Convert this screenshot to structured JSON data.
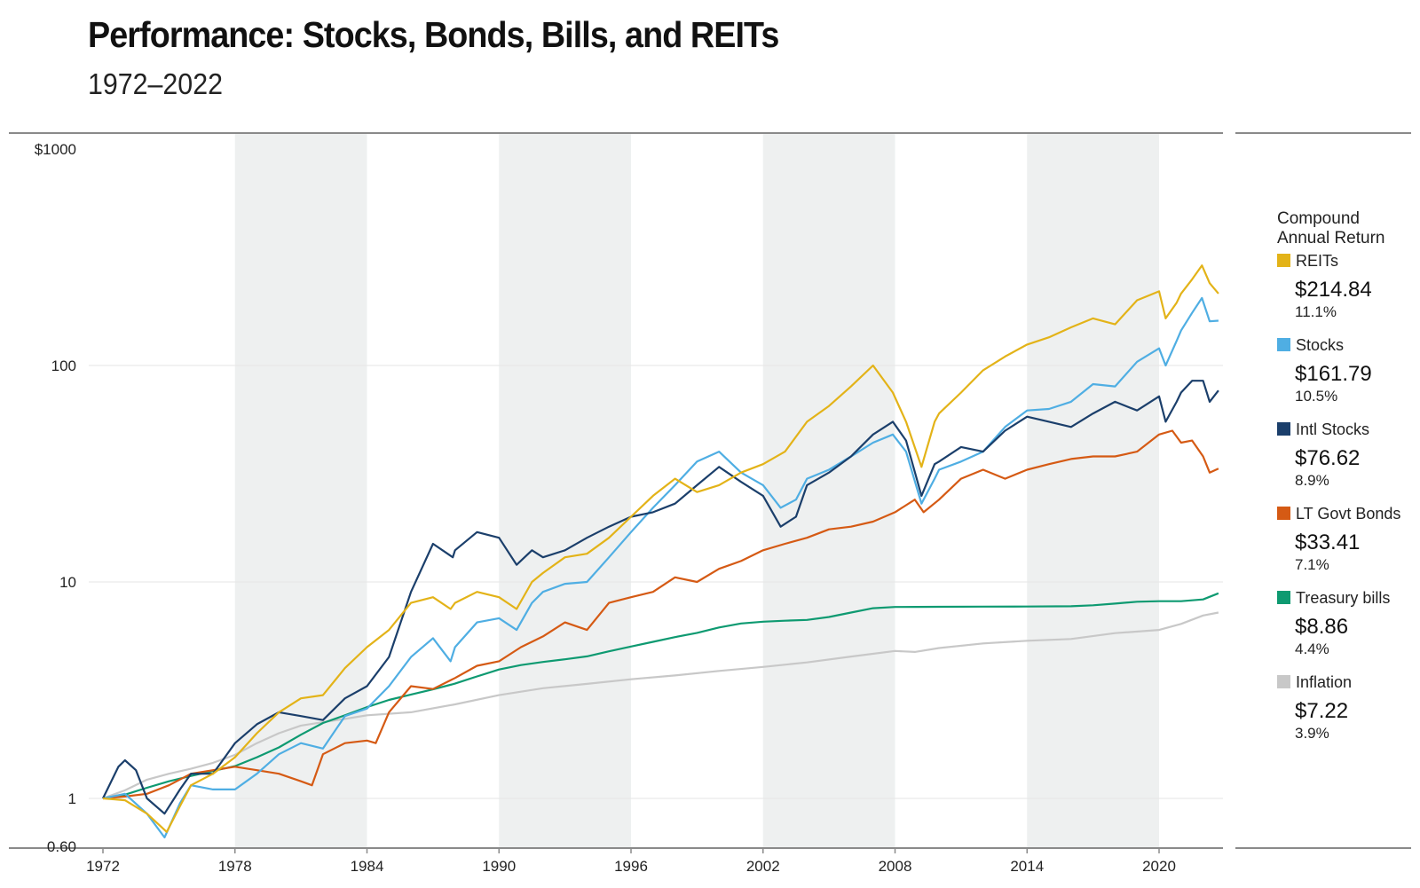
{
  "chart_data": {
    "type": "line",
    "title": "Performance: Stocks, Bonds, Bills, and REITs",
    "subtitle": "1972–2022",
    "y_scale": "log",
    "ylim": [
      0.6,
      1000
    ],
    "xlim": [
      1971.5,
      2022.7
    ],
    "y_ticks": [
      {
        "value": 1000,
        "label": "$1000"
      },
      {
        "value": 100,
        "label": "100"
      },
      {
        "value": 10,
        "label": "10"
      },
      {
        "value": 1,
        "label": "1"
      },
      {
        "value": 0.6,
        "label": "0.60"
      }
    ],
    "x_ticks": [
      1972,
      1978,
      1984,
      1990,
      1996,
      2002,
      2008,
      2014,
      2020
    ],
    "x_tick_labels": [
      "1972",
      "1978",
      "1984",
      "1990",
      "1996",
      "2002",
      "2008",
      "2014",
      "2020"
    ],
    "shaded_bands": [
      [
        1978,
        1984
      ],
      [
        1990,
        1996
      ],
      [
        2002,
        2008
      ],
      [
        2014,
        2020
      ]
    ],
    "legend_title": "Compound Annual Return",
    "legend_placement": "right",
    "series": [
      {
        "name": "REITs",
        "color": "#E3B318",
        "final_value": "$214.84",
        "cagr": "11.1%",
        "x": [
          1972,
          1973,
          1974,
          1974.9,
          1975.5,
          1976,
          1977,
          1978,
          1979,
          1980,
          1981,
          1982,
          1983,
          1984,
          1985,
          1986,
          1987,
          1987.8,
          1988,
          1989,
          1990,
          1990.8,
          1991.5,
          1992,
          1993,
          1994,
          1995,
          1996,
          1997,
          1998,
          1999,
          2000,
          2001,
          2002,
          2003,
          2004,
          2005,
          2006,
          2007,
          2007.9,
          2008.5,
          2009.2,
          2009.8,
          2010,
          2011,
          2012,
          2013,
          2014,
          2015,
          2016,
          2017,
          2018,
          2019,
          2020,
          2020.3,
          2020.8,
          2021,
          2021.5,
          2021.95,
          2022.3,
          2022.7
        ],
        "y": [
          1.0,
          0.98,
          0.85,
          0.7,
          0.92,
          1.15,
          1.3,
          1.55,
          2.0,
          2.5,
          2.9,
          3.0,
          4.0,
          5.0,
          6.0,
          8.0,
          8.5,
          7.5,
          8.0,
          9.0,
          8.5,
          7.5,
          10.0,
          11.0,
          13.0,
          13.5,
          16.0,
          20.0,
          25.0,
          30.0,
          26.0,
          28.0,
          32.0,
          35.0,
          40.0,
          55.0,
          65.0,
          80.0,
          100.0,
          75.0,
          55.0,
          34.0,
          55.0,
          60.0,
          75.0,
          95.0,
          110.0,
          125.0,
          135.0,
          150.0,
          165.0,
          155.0,
          200.0,
          220.0,
          165.0,
          195.0,
          215.0,
          250.0,
          290.0,
          240.0,
          215.0
        ]
      },
      {
        "name": "Stocks",
        "color": "#4FAEE3",
        "final_value": "$161.79",
        "cagr": "10.5%",
        "x": [
          1972,
          1973,
          1974,
          1974.8,
          1975.5,
          1976,
          1977,
          1978,
          1979,
          1980,
          1981,
          1982,
          1983,
          1984,
          1985,
          1986,
          1987,
          1987.8,
          1988,
          1989,
          1990,
          1990.8,
          1991.5,
          1992,
          1993,
          1994,
          1995,
          1996,
          1997,
          1998,
          1999,
          2000,
          2001,
          2002,
          2002.8,
          2003.5,
          2004,
          2005,
          2006,
          2007,
          2007.9,
          2008.5,
          2009.2,
          2009.8,
          2010,
          2011,
          2012,
          2013,
          2014,
          2015,
          2016,
          2017,
          2018,
          2019,
          2020,
          2020.3,
          2020.8,
          2021,
          2021.5,
          2021.95,
          2022.3,
          2022.7
        ],
        "y": [
          1.0,
          1.05,
          0.85,
          0.66,
          0.95,
          1.15,
          1.1,
          1.1,
          1.3,
          1.6,
          1.8,
          1.7,
          2.4,
          2.6,
          3.3,
          4.5,
          5.5,
          4.3,
          5.0,
          6.5,
          6.8,
          6.0,
          8.0,
          9.0,
          9.8,
          10.0,
          13.0,
          17.0,
          22.0,
          28.0,
          36.0,
          40.0,
          32.0,
          28.0,
          22.0,
          24.0,
          30.0,
          33.0,
          38.0,
          44.0,
          48.0,
          40.0,
          23.0,
          30.0,
          33.0,
          36.0,
          40.0,
          52.0,
          62.0,
          63.0,
          68.0,
          82.0,
          80.0,
          104.0,
          120.0,
          100.0,
          130.0,
          145.0,
          175.0,
          205.0,
          160.0,
          161.0
        ]
      },
      {
        "name": "Intl Stocks",
        "color": "#1B3F6B",
        "final_value": "$76.62",
        "cagr": "8.9%",
        "x": [
          1972,
          1972.7,
          1973,
          1973.5,
          1974,
          1974.8,
          1975.5,
          1976,
          1977,
          1978,
          1979,
          1980,
          1981,
          1982,
          1983,
          1984,
          1985,
          1986,
          1987,
          1987.9,
          1988,
          1989,
          1990,
          1990.8,
          1991.5,
          1992,
          1993,
          1994,
          1995,
          1996,
          1997,
          1998,
          1999,
          2000,
          2001,
          2002,
          2002.8,
          2003.5,
          2004,
          2005,
          2006,
          2007,
          2007.9,
          2008.5,
          2009.2,
          2009.8,
          2010,
          2011,
          2012,
          2013,
          2014,
          2015,
          2016,
          2017,
          2018,
          2019,
          2020,
          2020.3,
          2020.8,
          2021,
          2021.5,
          2022,
          2022.3,
          2022.7
        ],
        "y": [
          1.0,
          1.4,
          1.5,
          1.35,
          1.0,
          0.85,
          1.1,
          1.3,
          1.3,
          1.8,
          2.2,
          2.5,
          2.4,
          2.3,
          2.9,
          3.3,
          4.5,
          9.0,
          15.0,
          13.0,
          14.0,
          17.0,
          16.0,
          12.0,
          14.0,
          13.0,
          14.0,
          16.0,
          18.0,
          20.0,
          21.0,
          23.0,
          28.0,
          34.0,
          29.0,
          25.0,
          18.0,
          20.0,
          28.0,
          32.0,
          38.0,
          48.0,
          55.0,
          45.0,
          25.0,
          35.0,
          36.0,
          42.0,
          40.0,
          50.0,
          58.0,
          55.0,
          52.0,
          60.0,
          68.0,
          62.0,
          72.0,
          55.0,
          68.0,
          75.0,
          85.0,
          85.0,
          68.0,
          76.6
        ]
      },
      {
        "name": "LT Govt Bonds",
        "color": "#D55A14",
        "final_value": "$33.41",
        "cagr": "7.1%",
        "x": [
          1972,
          1973,
          1974,
          1975,
          1976,
          1977,
          1978,
          1979,
          1980,
          1981,
          1981.5,
          1982,
          1983,
          1984,
          1984.4,
          1985,
          1986,
          1987,
          1988,
          1989,
          1990,
          1991,
          1992,
          1993,
          1994,
          1995,
          1996,
          1997,
          1998,
          1999,
          2000,
          2001,
          2002,
          2003,
          2004,
          2005,
          2006,
          2007,
          2008,
          2008.9,
          2009.3,
          2010,
          2011,
          2012,
          2013,
          2014,
          2015,
          2016,
          2017,
          2018,
          2019,
          2020,
          2020.6,
          2021,
          2021.5,
          2022,
          2022.3,
          2022.7
        ],
        "y": [
          1.0,
          1.02,
          1.05,
          1.15,
          1.3,
          1.35,
          1.4,
          1.35,
          1.3,
          1.2,
          1.15,
          1.6,
          1.8,
          1.85,
          1.8,
          2.5,
          3.3,
          3.2,
          3.6,
          4.1,
          4.3,
          5.0,
          5.6,
          6.5,
          6.0,
          8.0,
          8.5,
          9.0,
          10.5,
          10.0,
          11.5,
          12.5,
          14.0,
          15.0,
          16.0,
          17.5,
          18.0,
          19.0,
          21.0,
          24.0,
          21.0,
          24.0,
          30.0,
          33.0,
          30.0,
          33.0,
          35.0,
          37.0,
          38.0,
          38.0,
          40.0,
          48.0,
          50.0,
          44.0,
          45.0,
          38.0,
          32.0,
          33.4
        ]
      },
      {
        "name": "Treasury bills",
        "color": "#0E9A71",
        "final_value": "$8.86",
        "cagr": "4.4%",
        "x": [
          1972,
          1973,
          1974,
          1975,
          1976,
          1977,
          1978,
          1979,
          1980,
          1981,
          1982,
          1983,
          1984,
          1985,
          1986,
          1987,
          1988,
          1989,
          1990,
          1991,
          1992,
          1993,
          1994,
          1995,
          1996,
          1997,
          1998,
          1999,
          2000,
          2001,
          2002,
          2003,
          2004,
          2005,
          2006,
          2007,
          2008,
          2009,
          2010,
          2012,
          2014,
          2016,
          2017,
          2018,
          2019,
          2020,
          2021,
          2022,
          2022.7
        ],
        "y": [
          1.0,
          1.04,
          1.12,
          1.2,
          1.27,
          1.34,
          1.41,
          1.55,
          1.72,
          1.97,
          2.23,
          2.42,
          2.64,
          2.85,
          3.02,
          3.19,
          3.39,
          3.66,
          3.94,
          4.13,
          4.27,
          4.39,
          4.53,
          4.78,
          5.03,
          5.29,
          5.56,
          5.82,
          6.16,
          6.43,
          6.55,
          6.62,
          6.68,
          6.89,
          7.22,
          7.56,
          7.66,
          7.67,
          7.68,
          7.69,
          7.7,
          7.72,
          7.8,
          7.94,
          8.1,
          8.15,
          8.15,
          8.3,
          8.86
        ]
      },
      {
        "name": "Inflation",
        "color": "#C8C8C8",
        "final_value": "$7.22",
        "cagr": "3.9%",
        "x": [
          1972,
          1973,
          1974,
          1975,
          1976,
          1977,
          1978,
          1979,
          1980,
          1981,
          1982,
          1983,
          1984,
          1986,
          1988,
          1990,
          1992,
          1994,
          1996,
          1998,
          2000,
          2002,
          2004,
          2006,
          2008,
          2008.9,
          2010,
          2012,
          2014,
          2016,
          2018,
          2020,
          2021,
          2022,
          2022.7
        ],
        "y": [
          1.0,
          1.09,
          1.22,
          1.3,
          1.37,
          1.46,
          1.59,
          1.8,
          2.0,
          2.17,
          2.25,
          2.33,
          2.42,
          2.5,
          2.72,
          3.0,
          3.23,
          3.38,
          3.55,
          3.7,
          3.88,
          4.05,
          4.25,
          4.52,
          4.8,
          4.75,
          4.95,
          5.2,
          5.35,
          5.45,
          5.8,
          6.0,
          6.4,
          7.0,
          7.22
        ]
      }
    ]
  }
}
